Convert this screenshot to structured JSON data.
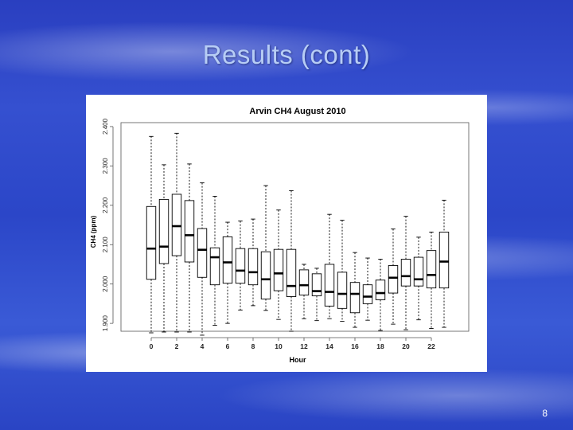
{
  "slide": {
    "title": "Results (cont)",
    "page_number": "8"
  },
  "chart_data": {
    "type": "boxplot",
    "title": "Arvin CH4 August 2010",
    "xlabel": "Hour",
    "ylabel": "CH4 (ppm)",
    "ylim": [
      1.88,
      2.41
    ],
    "y_ticks": [
      "1.900",
      "2.000",
      "2.100",
      "2.200",
      "2.300",
      "2.400"
    ],
    "y_tick_values": [
      1.9,
      2.0,
      2.1,
      2.2,
      2.3,
      2.4
    ],
    "x_tick_labels": [
      "0",
      "2",
      "4",
      "6",
      "8",
      "10",
      "12",
      "14",
      "16",
      "18",
      "20",
      "22"
    ],
    "categories": [
      "0",
      "1",
      "2",
      "3",
      "4",
      "5",
      "6",
      "7",
      "8",
      "9",
      "10",
      "11",
      "12",
      "13",
      "14",
      "15",
      "16",
      "17",
      "18",
      "19",
      "20",
      "21",
      "22",
      "23"
    ],
    "boxes": [
      {
        "hour": 0,
        "min": 1.876,
        "q1": 2.012,
        "median": 2.09,
        "q3": 2.197,
        "max": 2.375
      },
      {
        "hour": 1,
        "min": 1.878,
        "q1": 2.052,
        "median": 2.095,
        "q3": 2.215,
        "max": 2.303
      },
      {
        "hour": 2,
        "min": 1.878,
        "q1": 2.072,
        "median": 2.147,
        "q3": 2.228,
        "max": 2.383
      },
      {
        "hour": 3,
        "min": 1.878,
        "q1": 2.056,
        "median": 2.124,
        "q3": 2.212,
        "max": 2.305
      },
      {
        "hour": 4,
        "min": 1.87,
        "q1": 2.017,
        "median": 2.087,
        "q3": 2.141,
        "max": 2.257
      },
      {
        "hour": 5,
        "min": 1.895,
        "q1": 1.998,
        "median": 2.068,
        "q3": 2.092,
        "max": 2.223
      },
      {
        "hour": 6,
        "min": 1.9,
        "q1": 2.002,
        "median": 2.055,
        "q3": 2.12,
        "max": 2.157
      },
      {
        "hour": 7,
        "min": 1.934,
        "q1": 2.002,
        "median": 2.034,
        "q3": 2.09,
        "max": 2.16
      },
      {
        "hour": 8,
        "min": 1.945,
        "q1": 1.998,
        "median": 2.03,
        "q3": 2.09,
        "max": 2.165
      },
      {
        "hour": 9,
        "min": 1.933,
        "q1": 1.962,
        "median": 2.012,
        "q3": 2.082,
        "max": 2.25
      },
      {
        "hour": 10,
        "min": 1.91,
        "q1": 1.983,
        "median": 2.027,
        "q3": 2.088,
        "max": 2.188
      },
      {
        "hour": 11,
        "min": 1.88,
        "q1": 1.968,
        "median": 1.995,
        "q3": 2.088,
        "max": 2.237
      },
      {
        "hour": 12,
        "min": 1.912,
        "q1": 1.972,
        "median": 1.997,
        "q3": 2.036,
        "max": 2.05
      },
      {
        "hour": 13,
        "min": 1.907,
        "q1": 1.97,
        "median": 1.982,
        "q3": 2.026,
        "max": 2.04
      },
      {
        "hour": 14,
        "min": 1.912,
        "q1": 1.944,
        "median": 1.98,
        "q3": 2.05,
        "max": 2.177
      },
      {
        "hour": 15,
        "min": 1.905,
        "q1": 1.938,
        "median": 1.975,
        "q3": 2.03,
        "max": 2.162
      },
      {
        "hour": 16,
        "min": 1.89,
        "q1": 1.927,
        "median": 1.975,
        "q3": 2.004,
        "max": 2.08
      },
      {
        "hour": 17,
        "min": 1.908,
        "q1": 1.95,
        "median": 1.968,
        "q3": 1.998,
        "max": 2.066
      },
      {
        "hour": 18,
        "min": 1.882,
        "q1": 1.96,
        "median": 1.977,
        "q3": 2.01,
        "max": 2.063
      },
      {
        "hour": 19,
        "min": 1.898,
        "q1": 1.977,
        "median": 2.016,
        "q3": 2.047,
        "max": 2.14
      },
      {
        "hour": 20,
        "min": 1.884,
        "q1": 1.995,
        "median": 2.02,
        "q3": 2.063,
        "max": 2.172
      },
      {
        "hour": 21,
        "min": 1.909,
        "q1": 1.995,
        "median": 2.012,
        "q3": 2.068,
        "max": 2.119
      },
      {
        "hour": 22,
        "min": 1.887,
        "q1": 1.99,
        "median": 2.023,
        "q3": 2.085,
        "max": 2.132
      },
      {
        "hour": 23,
        "min": 1.89,
        "q1": 1.99,
        "median": 2.057,
        "q3": 2.132,
        "max": 2.213
      }
    ],
    "grid": false,
    "colors": {
      "box_fill": "#ffffff",
      "line": "#000000",
      "axis": "#555555"
    }
  }
}
